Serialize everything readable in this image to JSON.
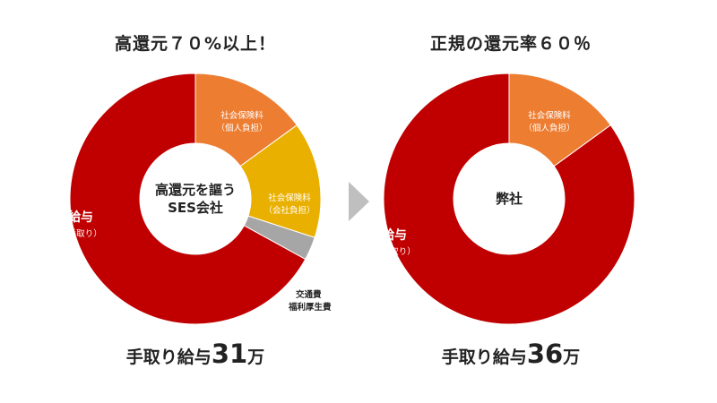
{
  "chart_data": [
    {
      "type": "pie",
      "title": "高還元７０%以上！",
      "center_label": [
        "高還元を謳う",
        "SES会社"
      ],
      "slices": [
        {
          "name": "社会保険料",
          "sub": "（個人負担）",
          "value": 15,
          "color": "#ED7D31"
        },
        {
          "name": "社会保険料",
          "sub": "（会社負担）",
          "value": 15,
          "color": "#EAB000"
        },
        {
          "name": "交通費",
          "sub": "福利厚生費",
          "value": 3,
          "color": "#A6A6A6"
        },
        {
          "name": "給与",
          "sub": "（手取り）",
          "value": 67,
          "color": "#C00000"
        }
      ],
      "caption": {
        "prefix": "手取り給与",
        "amount": "31",
        "unit": "万"
      }
    },
    {
      "type": "pie",
      "title": "正規の還元率６０％",
      "center_label": [
        "弊社"
      ],
      "slices": [
        {
          "name": "社会保険料",
          "sub": "（個人負担）",
          "value": 15,
          "color": "#ED7D31"
        },
        {
          "name": "給与",
          "sub": "（手取り）",
          "value": 85,
          "color": "#C00000"
        }
      ],
      "caption": {
        "prefix": "手取り給与",
        "amount": "36",
        "unit": "万"
      }
    }
  ],
  "arrow": {
    "color": "#BFBFBF",
    "icon": "triangle-right"
  }
}
